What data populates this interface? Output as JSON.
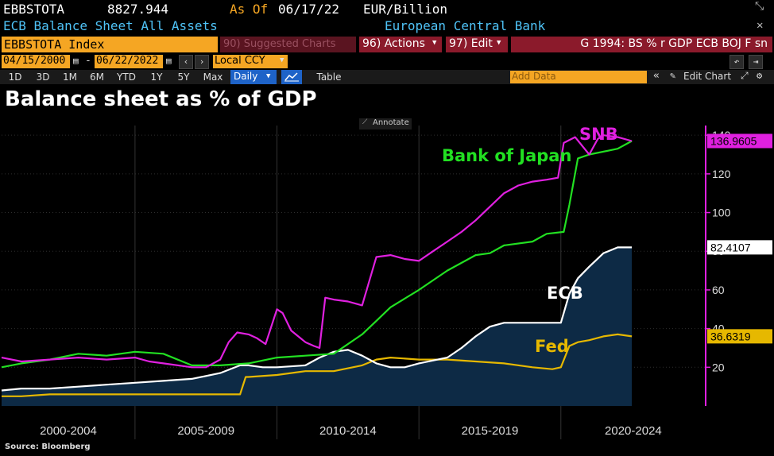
{
  "header": {
    "ticker": "EBBSTOTA",
    "last_value": "8827.944",
    "as_of_label": "As Of",
    "as_of_date": "06/17/22",
    "units": "EUR/Billion",
    "description": "ECB Balance Sheet All Assets",
    "source_name": "European Central Bank"
  },
  "toolbar": {
    "security": "EBBSTOTA Index",
    "suggested": "90) Suggested Charts",
    "actions": "96) Actions",
    "edit": "97) Edit",
    "chart_title": "G 1994: BS % r GDP ECB BOJ F sn"
  },
  "range": {
    "start_date": "04/15/2000",
    "end_date": "06/22/2022",
    "currency": "Local CCY",
    "dash": "-"
  },
  "periods": [
    "1D",
    "3D",
    "1M",
    "6M",
    "YTD",
    "1Y",
    "5Y",
    "Max"
  ],
  "frequency": "Daily",
  "table_label": "Table",
  "add_data_placeholder": "Add Data",
  "edit_chart_label": "Edit Chart",
  "annotate_label": "Annotate",
  "source_note": "Source: Bloomberg",
  "colors": {
    "snb": "#e020e0",
    "boj": "#22e022",
    "ecb": "#ffffff",
    "fed": "#e6b800",
    "ecb_fill": "#0d2a45",
    "amber": "#f5a623"
  },
  "chart_data": {
    "type": "line",
    "title": "Balance sheet as % of GDP",
    "x_tick_labels": [
      "2000-2004",
      "2005-2009",
      "2010-2014",
      "2015-2019",
      "2020-2024"
    ],
    "xlim": [
      2000.3,
      2025.1
    ],
    "ylim": [
      0,
      145
    ],
    "y_ticks": [
      20,
      40,
      60,
      80,
      100,
      120,
      140
    ],
    "legend": "inline labels",
    "series": [
      {
        "name": "SNB",
        "last_value": "136.9605",
        "x": [
          2000.3,
          2001,
          2002,
          2003,
          2004,
          2005,
          2005.5,
          2006,
          2007,
          2007.5,
          2008,
          2008.3,
          2008.6,
          2009,
          2009.3,
          2009.6,
          2010,
          2010.2,
          2010.5,
          2011,
          2011.3,
          2011.5,
          2011.7,
          2012,
          2012.5,
          2013,
          2013.5,
          2014,
          2014.5,
          2015,
          2015.5,
          2016,
          2016.5,
          2017,
          2017.5,
          2018,
          2018.5,
          2019,
          2019.5,
          2019.9,
          2020.1,
          2020.5,
          2021,
          2021.3,
          2021.5,
          2022,
          2022.5
        ],
        "values": [
          25,
          23,
          24,
          25,
          24,
          25,
          23,
          22,
          20,
          20,
          24,
          33,
          38,
          37,
          35,
          32,
          50,
          48,
          39,
          33,
          31,
          30,
          56,
          55,
          54,
          52,
          77,
          78,
          76,
          75,
          80,
          85,
          90,
          96,
          103,
          110,
          114,
          116,
          117,
          118,
          136,
          139,
          130,
          138,
          140,
          139,
          137
        ]
      },
      {
        "name": "Bank of Japan",
        "last_value": null,
        "x": [
          2000.3,
          2001,
          2002,
          2003,
          2004,
          2005,
          2006,
          2007,
          2008,
          2009,
          2010,
          2011,
          2012,
          2013,
          2013.5,
          2014,
          2015,
          2016,
          2017,
          2017.5,
          2018,
          2019,
          2019.5,
          2020.1,
          2020.3,
          2020.6,
          2021,
          2022,
          2022.5
        ],
        "values": [
          20,
          22,
          24,
          27,
          26,
          28,
          27,
          21,
          21,
          22,
          25,
          26,
          27,
          37,
          44,
          51,
          60,
          70,
          78,
          79,
          83,
          85,
          89,
          90,
          104,
          128,
          130,
          133,
          137
        ]
      },
      {
        "name": "ECB",
        "last_value": "82.4107",
        "x": [
          2000.3,
          2001,
          2002,
          2003,
          2004,
          2005,
          2006,
          2007,
          2008,
          2008.7,
          2009,
          2009.5,
          2010,
          2011,
          2011.5,
          2012,
          2012.5,
          2013,
          2013.5,
          2014,
          2014.5,
          2015,
          2016,
          2016.5,
          2017,
          2017.5,
          2018,
          2019,
          2019.5,
          2020,
          2020.3,
          2020.6,
          2021,
          2021.5,
          2022,
          2022.5
        ],
        "values": [
          8,
          9,
          9,
          10,
          11,
          12,
          13,
          14,
          17,
          21,
          21,
          20,
          20,
          21,
          25,
          28,
          29,
          26,
          22,
          20,
          20,
          22,
          25,
          30,
          36,
          41,
          43,
          43,
          43,
          43,
          58,
          66,
          72,
          79,
          82,
          82
        ]
      },
      {
        "name": "Fed",
        "last_value": "36.6319",
        "x": [
          2000.3,
          2001,
          2002,
          2003,
          2004,
          2005,
          2006,
          2007,
          2008,
          2008.7,
          2008.9,
          2009,
          2010,
          2011,
          2012,
          2013,
          2013.5,
          2014,
          2015,
          2016,
          2017,
          2018,
          2019,
          2019.7,
          2020,
          2020.3,
          2020.6,
          2021,
          2021.5,
          2022,
          2022.5
        ],
        "values": [
          5,
          5,
          6,
          6,
          6,
          6,
          6,
          6,
          6,
          6,
          15,
          15,
          16,
          18,
          18,
          21,
          24,
          25,
          24,
          24,
          23,
          22,
          20,
          19,
          20,
          31,
          33,
          34,
          36,
          37,
          36
        ]
      }
    ]
  },
  "inline_labels": {
    "snb": "SNB",
    "boj": "Bank of Japan",
    "ecb": "ECB",
    "fed": "Fed"
  }
}
